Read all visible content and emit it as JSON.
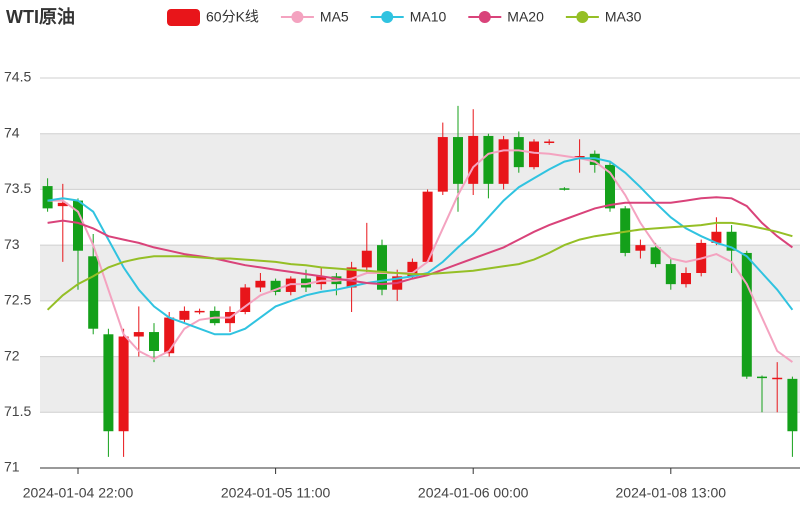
{
  "chart_data": {
    "type": "candlestick",
    "title": "WTI原油",
    "categories": [
      null,
      null,
      "2024-01-04 22:00",
      null,
      null,
      null,
      null,
      null,
      null,
      null,
      null,
      null,
      null,
      null,
      null,
      "2024-01-05 11:00",
      null,
      null,
      null,
      null,
      null,
      null,
      null,
      null,
      null,
      null,
      null,
      null,
      "2024-01-06 00:00",
      null,
      null,
      null,
      null,
      null,
      null,
      null,
      null,
      null,
      null,
      null,
      null,
      "2024-01-08 13:00",
      null,
      null,
      null,
      null,
      null,
      null,
      null,
      null
    ],
    "ylim": [
      71,
      74.5
    ],
    "yticks": [
      71,
      71.5,
      72,
      72.5,
      73,
      73.5,
      74,
      74.5
    ],
    "grid": true,
    "up_color": "#e8151a",
    "down_color": "#14a01a",
    "series": [
      {
        "name": "60分K线",
        "color": "#e8151a",
        "open": [
          73.53,
          73.35,
          73.4,
          72.9,
          72.2,
          71.33,
          72.18,
          72.22,
          72.03,
          72.33,
          72.4,
          72.41,
          72.3,
          72.4,
          72.62,
          72.68,
          72.58,
          72.7,
          72.65,
          72.72,
          72.62,
          72.8,
          73.0,
          72.6,
          72.72,
          72.85,
          73.48,
          73.97,
          73.55,
          73.98,
          73.55,
          73.97,
          73.7,
          73.92,
          73.51,
          73.78,
          73.82,
          73.72,
          73.33,
          72.95,
          72.98,
          72.83,
          72.65,
          72.75,
          73.02,
          73.12,
          72.93,
          71.82,
          71.8,
          71.8
        ],
        "close": [
          73.33,
          73.38,
          72.95,
          72.25,
          71.33,
          72.18,
          72.22,
          72.05,
          72.35,
          72.41,
          72.41,
          72.3,
          72.4,
          72.62,
          72.68,
          72.58,
          72.7,
          72.62,
          72.72,
          72.65,
          72.8,
          72.95,
          72.6,
          72.72,
          72.85,
          73.48,
          73.97,
          73.55,
          73.98,
          73.55,
          73.95,
          73.7,
          73.93,
          73.93,
          73.5,
          73.8,
          73.72,
          73.33,
          72.93,
          73.0,
          72.83,
          72.65,
          72.75,
          73.02,
          73.12,
          72.95,
          71.82,
          71.81,
          71.81,
          71.33
        ],
        "high": [
          73.6,
          73.55,
          73.42,
          73.1,
          72.25,
          72.25,
          72.45,
          72.3,
          72.4,
          72.45,
          72.43,
          72.45,
          72.45,
          72.65,
          72.75,
          72.7,
          72.72,
          72.78,
          72.8,
          72.75,
          72.85,
          73.2,
          73.05,
          72.78,
          72.88,
          73.5,
          74.1,
          74.25,
          74.22,
          74.0,
          73.98,
          74.02,
          73.95,
          73.95,
          73.52,
          73.95,
          73.85,
          73.75,
          73.35,
          73.05,
          73.02,
          72.88,
          72.8,
          73.05,
          73.25,
          73.18,
          72.95,
          71.83,
          71.95,
          71.82
        ],
        "low": [
          73.3,
          72.85,
          72.6,
          72.2,
          71.1,
          71.1,
          72.0,
          71.95,
          72.0,
          72.3,
          72.38,
          72.28,
          72.22,
          72.38,
          72.58,
          72.55,
          72.55,
          72.58,
          72.6,
          72.55,
          72.4,
          72.75,
          72.55,
          72.5,
          72.7,
          72.85,
          73.45,
          73.3,
          73.45,
          73.42,
          73.5,
          73.65,
          73.68,
          73.9,
          73.49,
          73.65,
          73.65,
          73.3,
          72.9,
          72.88,
          72.8,
          72.6,
          72.62,
          72.72,
          73.0,
          72.75,
          71.8,
          71.5,
          71.5,
          71.1
        ]
      },
      {
        "name": "MA5",
        "color": "#f4a3c0",
        "values": [
          73.4,
          73.4,
          73.3,
          73.0,
          72.6,
          72.2,
          72.05,
          71.98,
          72.05,
          72.25,
          72.33,
          72.35,
          72.35,
          72.45,
          72.55,
          72.6,
          72.65,
          72.65,
          72.68,
          72.68,
          72.7,
          72.75,
          72.75,
          72.75,
          72.75,
          72.85,
          73.15,
          73.45,
          73.7,
          73.82,
          73.85,
          73.85,
          73.83,
          73.82,
          73.8,
          73.78,
          73.75,
          73.65,
          73.45,
          73.2,
          73.0,
          72.88,
          72.85,
          72.88,
          72.92,
          72.85,
          72.65,
          72.35,
          72.05,
          71.95
        ]
      },
      {
        "name": "MA10",
        "color": "#30c3e0",
        "values": [
          73.4,
          73.42,
          73.4,
          73.3,
          73.05,
          72.8,
          72.6,
          72.45,
          72.35,
          72.3,
          72.25,
          72.2,
          72.2,
          72.25,
          72.35,
          72.45,
          72.5,
          72.55,
          72.58,
          72.6,
          72.63,
          72.66,
          72.68,
          72.7,
          72.72,
          72.75,
          72.85,
          72.98,
          73.1,
          73.25,
          73.4,
          73.52,
          73.6,
          73.68,
          73.75,
          73.78,
          73.78,
          73.75,
          73.65,
          73.52,
          73.38,
          73.25,
          73.15,
          73.08,
          73.02,
          72.98,
          72.9,
          72.75,
          72.6,
          72.42
        ]
      },
      {
        "name": "MA20",
        "color": "#d9437a",
        "values": [
          73.2,
          73.22,
          73.2,
          73.15,
          73.08,
          73.05,
          73.02,
          72.98,
          72.95,
          72.92,
          72.9,
          72.88,
          72.85,
          72.82,
          72.8,
          72.78,
          72.76,
          72.74,
          72.72,
          72.7,
          72.68,
          72.66,
          72.65,
          72.66,
          72.7,
          72.73,
          72.78,
          72.83,
          72.88,
          72.93,
          72.98,
          73.05,
          73.12,
          73.18,
          73.23,
          73.28,
          73.33,
          73.36,
          73.38,
          73.38,
          73.38,
          73.38,
          73.4,
          73.42,
          73.43,
          73.42,
          73.35,
          73.2,
          73.08,
          72.98
        ]
      },
      {
        "name": "MA30",
        "color": "#95bf26",
        "values": [
          72.42,
          72.55,
          72.65,
          72.72,
          72.8,
          72.85,
          72.88,
          72.9,
          72.9,
          72.9,
          72.89,
          72.88,
          72.88,
          72.87,
          72.86,
          72.85,
          72.83,
          72.82,
          72.8,
          72.79,
          72.78,
          72.77,
          72.76,
          72.75,
          72.74,
          72.74,
          72.75,
          72.76,
          72.77,
          72.79,
          72.81,
          72.83,
          72.87,
          72.93,
          73.0,
          73.05,
          73.08,
          73.1,
          73.12,
          73.14,
          73.15,
          73.16,
          73.17,
          73.18,
          73.2,
          73.2,
          73.18,
          73.15,
          73.12,
          73.08
        ]
      }
    ]
  }
}
